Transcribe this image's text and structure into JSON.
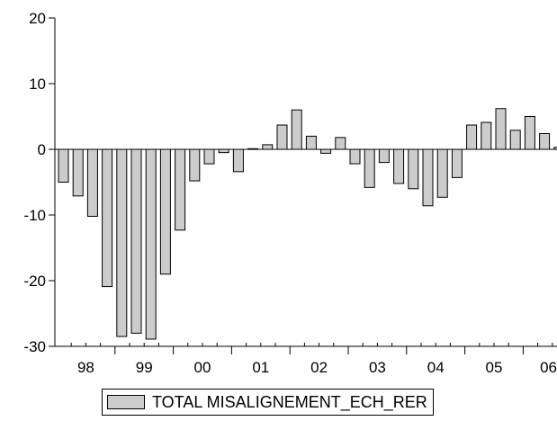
{
  "chart_data": {
    "type": "bar",
    "colors": {
      "bar_fill": "#cccccc",
      "bar_stroke": "#000000",
      "axis": "#000000"
    },
    "ylim": [
      -30,
      20
    ],
    "yticks": [
      20,
      10,
      0,
      -10,
      -20,
      -30
    ],
    "x_tick_labels": [
      "98",
      "99",
      "00",
      "01",
      "02",
      "03",
      "04",
      "05",
      "06"
    ],
    "x_start_year": 1998,
    "quarters_per_year": 4,
    "grid": false,
    "legend_position": "bottom",
    "series": [
      {
        "name": "TOTAL MISALIGNEMENT_ECH_RER",
        "values": [
          -5.0,
          -7.1,
          -10.2,
          -20.9,
          -28.5,
          -28.0,
          -28.9,
          -19.0,
          -12.3,
          -4.8,
          -2.2,
          -0.5,
          -3.4,
          0.1,
          0.7,
          3.7,
          6.0,
          2.0,
          -0.6,
          1.8,
          -2.2,
          -5.8,
          -2.0,
          -5.2,
          -6.0,
          -8.6,
          -7.3,
          -4.3,
          3.7,
          4.1,
          6.2,
          2.9,
          5.0,
          2.4,
          0.3
        ]
      }
    ]
  }
}
